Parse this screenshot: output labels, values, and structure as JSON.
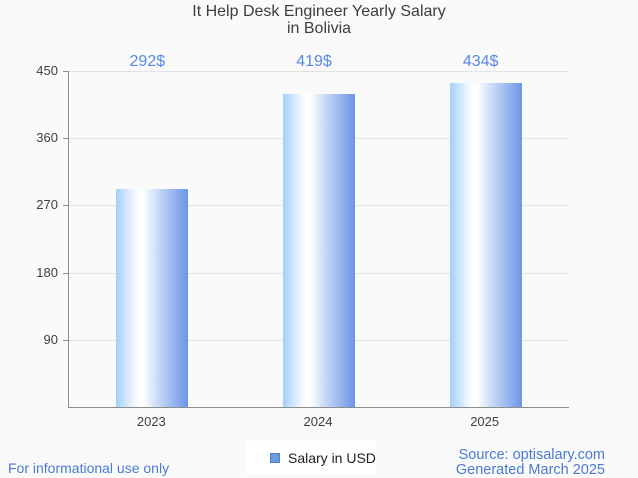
{
  "title": {
    "line1": "It Help Desk Engineer Yearly Salary",
    "line2": "in Bolivia"
  },
  "chart_data": {
    "type": "bar",
    "title": "It Help Desk Engineer Yearly Salary in Bolivia",
    "categories": [
      "2023",
      "2024",
      "2025"
    ],
    "values": [
      292,
      419,
      434
    ],
    "data_labels": [
      "292$",
      "419$",
      "434$"
    ],
    "series_name": "Salary in USD",
    "xlabel": "",
    "ylabel": "",
    "ylim": [
      0,
      450
    ],
    "yticks": [
      90,
      180,
      270,
      360,
      450
    ],
    "grid": true,
    "legend_position": "bottom-center"
  },
  "legend": {
    "label": "Salary in USD",
    "swatch_color": "#6f9ae2",
    "swatch_border_color": "#5280c8"
  },
  "footer": {
    "left": "For informational use only",
    "source": "Source: optisalary.com",
    "generated": "Generated March 2025"
  },
  "colors": {
    "background": "#fafafa",
    "bar_gradient_left": "#a4cffa",
    "bar_gradient_middle": "#ffffff",
    "bar_gradient_right": "#6d94e9",
    "value_label": "#5787e8",
    "footer_text": "#4c79d4",
    "axis": "#8e8e8e",
    "gridline": "#e4e4e4",
    "text": "#3d3d3d"
  }
}
